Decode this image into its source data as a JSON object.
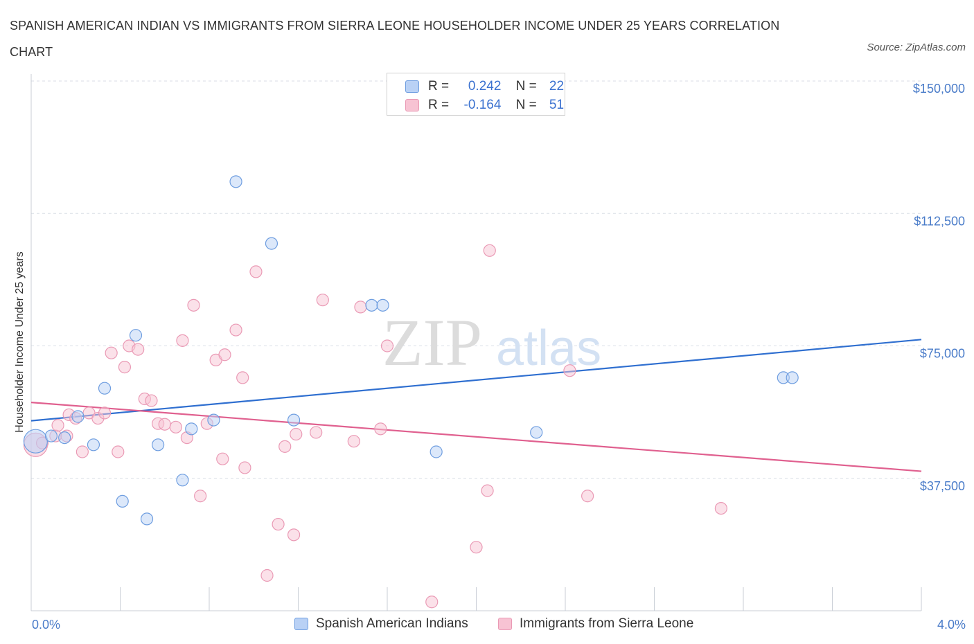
{
  "header": {
    "title": "SPANISH AMERICAN INDIAN VS IMMIGRANTS FROM SIERRA LEONE HOUSEHOLDER INCOME UNDER 25 YEARS CORRELATION CHART",
    "source": "Source: ZipAtlas.com"
  },
  "watermark": {
    "zip": "ZIP",
    "atlas": "atlas"
  },
  "legend": {
    "series1": {
      "r_label": "R =",
      "r_value": "0.242",
      "n_label": "N =",
      "n_value": "22"
    },
    "series2": {
      "r_label": "R =",
      "r_value": "-0.164",
      "n_label": "N =",
      "n_value": "51"
    }
  },
  "colors": {
    "blue_fill": "#b9d1f5",
    "blue_stroke": "#6f9ee0",
    "blue_line": "#2f6fd0",
    "pink_fill": "#f7c3d3",
    "pink_stroke": "#ea9ab5",
    "pink_line": "#e0608f",
    "grid": "#d8dde6",
    "axis_label": "#4a7cc9"
  },
  "chart_data": {
    "type": "scatter",
    "title": "SPANISH AMERICAN INDIAN VS IMMIGRANTS FROM SIERRA LEONE HOUSEHOLDER INCOME UNDER 25 YEARS CORRELATION CHART",
    "xlabel": "",
    "ylabel": "Householder Income Under 25 years",
    "xlim": [
      0,
      4.0
    ],
    "ylim": [
      0,
      150000
    ],
    "x_tick_labels": [
      "0.0%",
      "4.0%"
    ],
    "y_ticks": [
      37500,
      75000,
      112500,
      150000
    ],
    "y_tick_labels": [
      "$37,500",
      "$75,000",
      "$112,500",
      "$150,000"
    ],
    "grid": true,
    "legend_position": "top-center",
    "series": [
      {
        "name": "Spanish American Indians",
        "color": "#6f9ee0",
        "trend": {
          "x": [
            0,
            4.0
          ],
          "y": [
            53800,
            76800
          ]
        },
        "points": [
          {
            "x": 0.02,
            "y": 48000,
            "big": true
          },
          {
            "x": 0.09,
            "y": 49500
          },
          {
            "x": 0.15,
            "y": 49000
          },
          {
            "x": 0.21,
            "y": 55000
          },
          {
            "x": 0.28,
            "y": 47000
          },
          {
            "x": 0.33,
            "y": 63000
          },
          {
            "x": 0.41,
            "y": 31000
          },
          {
            "x": 0.47,
            "y": 78000
          },
          {
            "x": 0.52,
            "y": 26000
          },
          {
            "x": 0.57,
            "y": 47000
          },
          {
            "x": 0.68,
            "y": 37000
          },
          {
            "x": 0.72,
            "y": 51500
          },
          {
            "x": 0.82,
            "y": 54000
          },
          {
            "x": 0.92,
            "y": 121500
          },
          {
            "x": 1.08,
            "y": 104000
          },
          {
            "x": 1.18,
            "y": 54000
          },
          {
            "x": 1.53,
            "y": 86500
          },
          {
            "x": 1.58,
            "y": 86500
          },
          {
            "x": 1.82,
            "y": 45000
          },
          {
            "x": 2.27,
            "y": 50500
          },
          {
            "x": 3.38,
            "y": 66000
          },
          {
            "x": 3.42,
            "y": 66000
          }
        ]
      },
      {
        "name": "Immigrants from Sierra Leone",
        "color": "#ea9ab5",
        "trend": {
          "x": [
            0,
            4.0
          ],
          "y": [
            59000,
            39500
          ]
        },
        "points": [
          {
            "x": 0.02,
            "y": 47000,
            "big": true
          },
          {
            "x": 0.11,
            "y": 49500
          },
          {
            "x": 0.16,
            "y": 49500
          },
          {
            "x": 0.12,
            "y": 52500
          },
          {
            "x": 0.17,
            "y": 55500
          },
          {
            "x": 0.2,
            "y": 54500
          },
          {
            "x": 0.23,
            "y": 45000
          },
          {
            "x": 0.26,
            "y": 56000
          },
          {
            "x": 0.3,
            "y": 54500
          },
          {
            "x": 0.33,
            "y": 56000
          },
          {
            "x": 0.36,
            "y": 73000
          },
          {
            "x": 0.39,
            "y": 45000
          },
          {
            "x": 0.42,
            "y": 69000
          },
          {
            "x": 0.44,
            "y": 75000
          },
          {
            "x": 0.48,
            "y": 74000
          },
          {
            "x": 0.51,
            "y": 60000
          },
          {
            "x": 0.54,
            "y": 59500
          },
          {
            "x": 0.57,
            "y": 53000
          },
          {
            "x": 0.6,
            "y": 52800
          },
          {
            "x": 0.65,
            "y": 52000
          },
          {
            "x": 0.68,
            "y": 76500
          },
          {
            "x": 0.7,
            "y": 49000
          },
          {
            "x": 0.73,
            "y": 86500
          },
          {
            "x": 0.76,
            "y": 32500
          },
          {
            "x": 0.79,
            "y": 53000
          },
          {
            "x": 0.83,
            "y": 71000
          },
          {
            "x": 0.86,
            "y": 43000
          },
          {
            "x": 0.87,
            "y": 72500
          },
          {
            "x": 0.92,
            "y": 79500
          },
          {
            "x": 0.95,
            "y": 66000
          },
          {
            "x": 0.96,
            "y": 40500
          },
          {
            "x": 1.01,
            "y": 96000
          },
          {
            "x": 1.06,
            "y": 10000
          },
          {
            "x": 1.11,
            "y": 24500
          },
          {
            "x": 1.14,
            "y": 46500
          },
          {
            "x": 1.18,
            "y": 21500
          },
          {
            "x": 1.19,
            "y": 50000
          },
          {
            "x": 1.28,
            "y": 50500
          },
          {
            "x": 1.31,
            "y": 88000
          },
          {
            "x": 1.45,
            "y": 48000
          },
          {
            "x": 1.48,
            "y": 86000
          },
          {
            "x": 1.57,
            "y": 51500
          },
          {
            "x": 1.6,
            "y": 75000
          },
          {
            "x": 1.8,
            "y": 2500
          },
          {
            "x": 2.0,
            "y": 18000
          },
          {
            "x": 2.05,
            "y": 34000
          },
          {
            "x": 2.06,
            "y": 102000
          },
          {
            "x": 2.42,
            "y": 68000
          },
          {
            "x": 2.5,
            "y": 32500
          },
          {
            "x": 3.1,
            "y": 29000
          },
          {
            "x": 0.05,
            "y": 47500
          }
        ]
      }
    ]
  }
}
